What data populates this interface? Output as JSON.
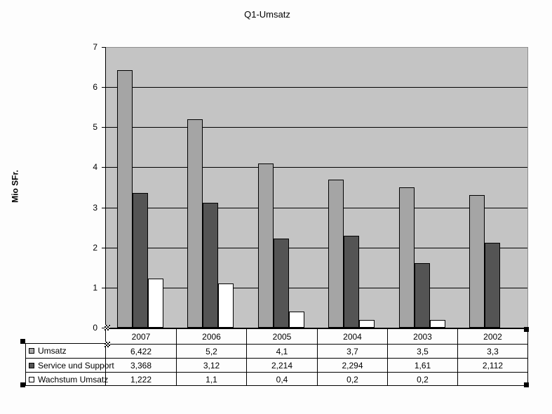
{
  "title": "Q1-Umsatz",
  "y_axis": {
    "label": "Mio SFr.",
    "ticks": [
      "7",
      "6",
      "5",
      "4",
      "3",
      "2",
      "1",
      "0"
    ],
    "max": 7
  },
  "table": {
    "header": [
      "2007",
      "2006",
      "2005",
      "2004",
      "2003",
      "2002"
    ],
    "rows": [
      {
        "label": "Umsatz",
        "values": [
          "6,422",
          "5,2",
          "4,1",
          "3,7",
          "3,5",
          "3,3"
        ]
      },
      {
        "label": "Service und Support",
        "values": [
          "3,368",
          "3,12",
          "2,214",
          "2,294",
          "1,61",
          "2,112"
        ]
      },
      {
        "label": "Wachstum Umsatz",
        "values": [
          "1,222",
          "1,1",
          "0,4",
          "0,2",
          "0,2",
          ""
        ]
      }
    ]
  },
  "colors": {
    "plot_background": "#c4c4c4",
    "series": [
      "#a5a5a5",
      "#545454",
      "#ffffff"
    ],
    "gridline": "#000000",
    "plot_border": "#8f8f8f"
  },
  "chart_data": {
    "type": "bar",
    "title": "Q1-Umsatz",
    "xlabel": "",
    "ylabel": "Mio SFr.",
    "ylim": [
      0,
      7
    ],
    "grid": true,
    "legend_position": "data-table-left",
    "categories": [
      "2007",
      "2006",
      "2005",
      "2004",
      "2003",
      "2002"
    ],
    "series": [
      {
        "name": "Umsatz",
        "values": [
          6.422,
          5.2,
          4.1,
          3.7,
          3.5,
          3.3
        ]
      },
      {
        "name": "Service und Support",
        "values": [
          3.368,
          3.12,
          2.214,
          2.294,
          1.61,
          2.112
        ]
      },
      {
        "name": "Wachstum Umsatz",
        "values": [
          1.222,
          1.1,
          0.4,
          0.2,
          0.2,
          null
        ]
      }
    ]
  }
}
